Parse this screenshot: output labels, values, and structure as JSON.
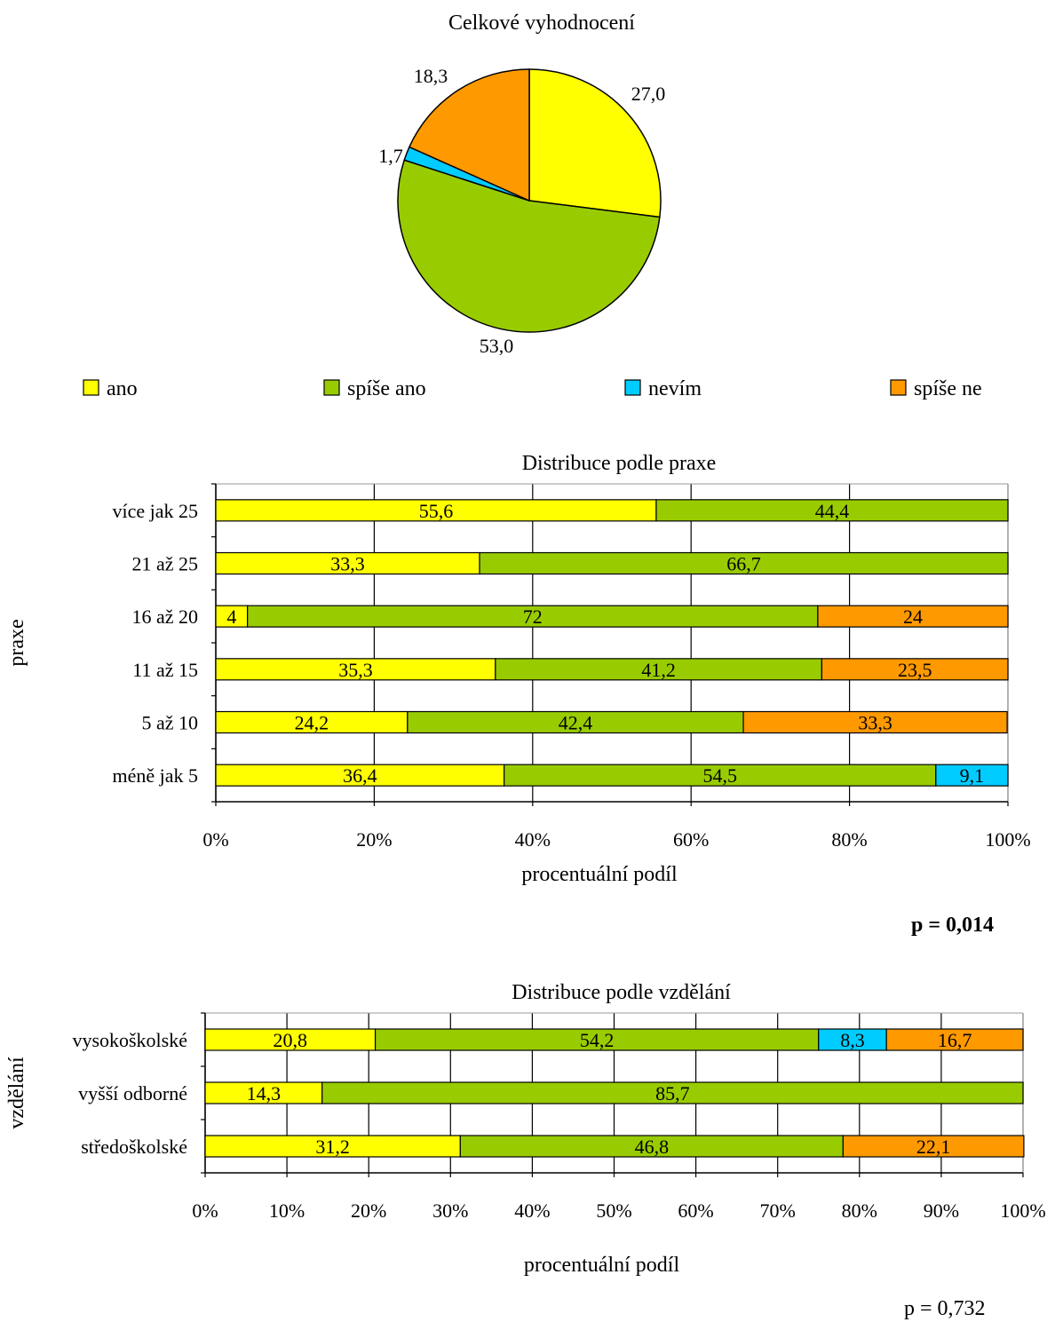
{
  "legend_colors": {
    "ano": "#FFFF00",
    "spise_ano": "#99CC00",
    "nevim": "#00CCFF",
    "spise_ne": "#FF9900"
  },
  "chart_data": [
    {
      "type": "pie",
      "title": "Celkové vyhodnocení",
      "slices": [
        {
          "label": "ano",
          "value": 27.0,
          "value_text": "27,0",
          "color": "#FFFF00"
        },
        {
          "label": "spíše ano",
          "value": 53.0,
          "value_text": "53,0",
          "color": "#99CC00"
        },
        {
          "label": "nevím",
          "value": 1.7,
          "value_text": "1,7",
          "color": "#00CCFF"
        },
        {
          "label": "spíše ne",
          "value": 18.3,
          "value_text": "18,3",
          "color": "#FF9900"
        }
      ],
      "legend": [
        "ano",
        "spíše ano",
        "nevím",
        "spíše ne"
      ],
      "legend_position": "bottom"
    },
    {
      "type": "bar",
      "orientation": "horizontal",
      "stacked": true,
      "title": "Distribuce podle praxe",
      "xlabel": "procentuální podíl",
      "ylabel": "praxe",
      "xlim": [
        0,
        100
      ],
      "xticks": [
        "0%",
        "20%",
        "40%",
        "60%",
        "80%",
        "100%"
      ],
      "grid": true,
      "categories": [
        "více jak 25",
        "21 až 25",
        "16 až 20",
        "11 až 15",
        "5 až 10",
        "méně jak 5"
      ],
      "series": [
        {
          "name": "ano",
          "color": "#FFFF00",
          "values": [
            55.6,
            33.3,
            4,
            35.3,
            24.2,
            36.4
          ],
          "labels": [
            "55,6",
            "33,3",
            "4",
            "35,3",
            "24,2",
            "36,4"
          ]
        },
        {
          "name": "spíše ano",
          "color": "#99CC00",
          "values": [
            44.4,
            66.7,
            72,
            41.2,
            42.4,
            54.5
          ],
          "labels": [
            "44,4",
            "66,7",
            "72",
            "41,2",
            "42,4",
            "54,5"
          ]
        },
        {
          "name": "nevím",
          "color": "#00CCFF",
          "values": [
            0,
            0,
            0,
            0,
            0,
            9.1
          ],
          "labels": [
            "",
            "",
            "",
            "",
            "",
            "9,1"
          ]
        },
        {
          "name": "spíše ne",
          "color": "#FF9900",
          "values": [
            0,
            0,
            24,
            23.5,
            33.3,
            0
          ],
          "labels": [
            "",
            "",
            "24",
            "23,5",
            "33,3",
            ""
          ]
        }
      ],
      "p_value": "p = 0,014"
    },
    {
      "type": "bar",
      "orientation": "horizontal",
      "stacked": true,
      "title": "Distribuce podle vzdělání",
      "xlabel": "procentuální podíl",
      "ylabel": "vzdělání",
      "xlim": [
        0,
        100
      ],
      "xticks": [
        "0%",
        "10%",
        "20%",
        "30%",
        "40%",
        "50%",
        "60%",
        "70%",
        "80%",
        "90%",
        "100%"
      ],
      "grid": true,
      "categories": [
        "vysokoškolské",
        "vyšší odborné",
        "středoškolské"
      ],
      "series": [
        {
          "name": "ano",
          "color": "#FFFF00",
          "values": [
            20.8,
            14.3,
            31.2
          ],
          "labels": [
            "20,8",
            "14,3",
            "31,2"
          ]
        },
        {
          "name": "spíše ano",
          "color": "#99CC00",
          "values": [
            54.2,
            85.7,
            46.8
          ],
          "labels": [
            "54,2",
            "85,7",
            "46,8"
          ]
        },
        {
          "name": "nevím",
          "color": "#00CCFF",
          "values": [
            8.3,
            0,
            0
          ],
          "labels": [
            "8,3",
            "",
            ""
          ]
        },
        {
          "name": "spíše ne",
          "color": "#FF9900",
          "values": [
            16.7,
            0,
            22.1
          ],
          "labels": [
            "16,7",
            "",
            "22,1"
          ]
        }
      ],
      "p_value": "p = 0,732"
    }
  ]
}
